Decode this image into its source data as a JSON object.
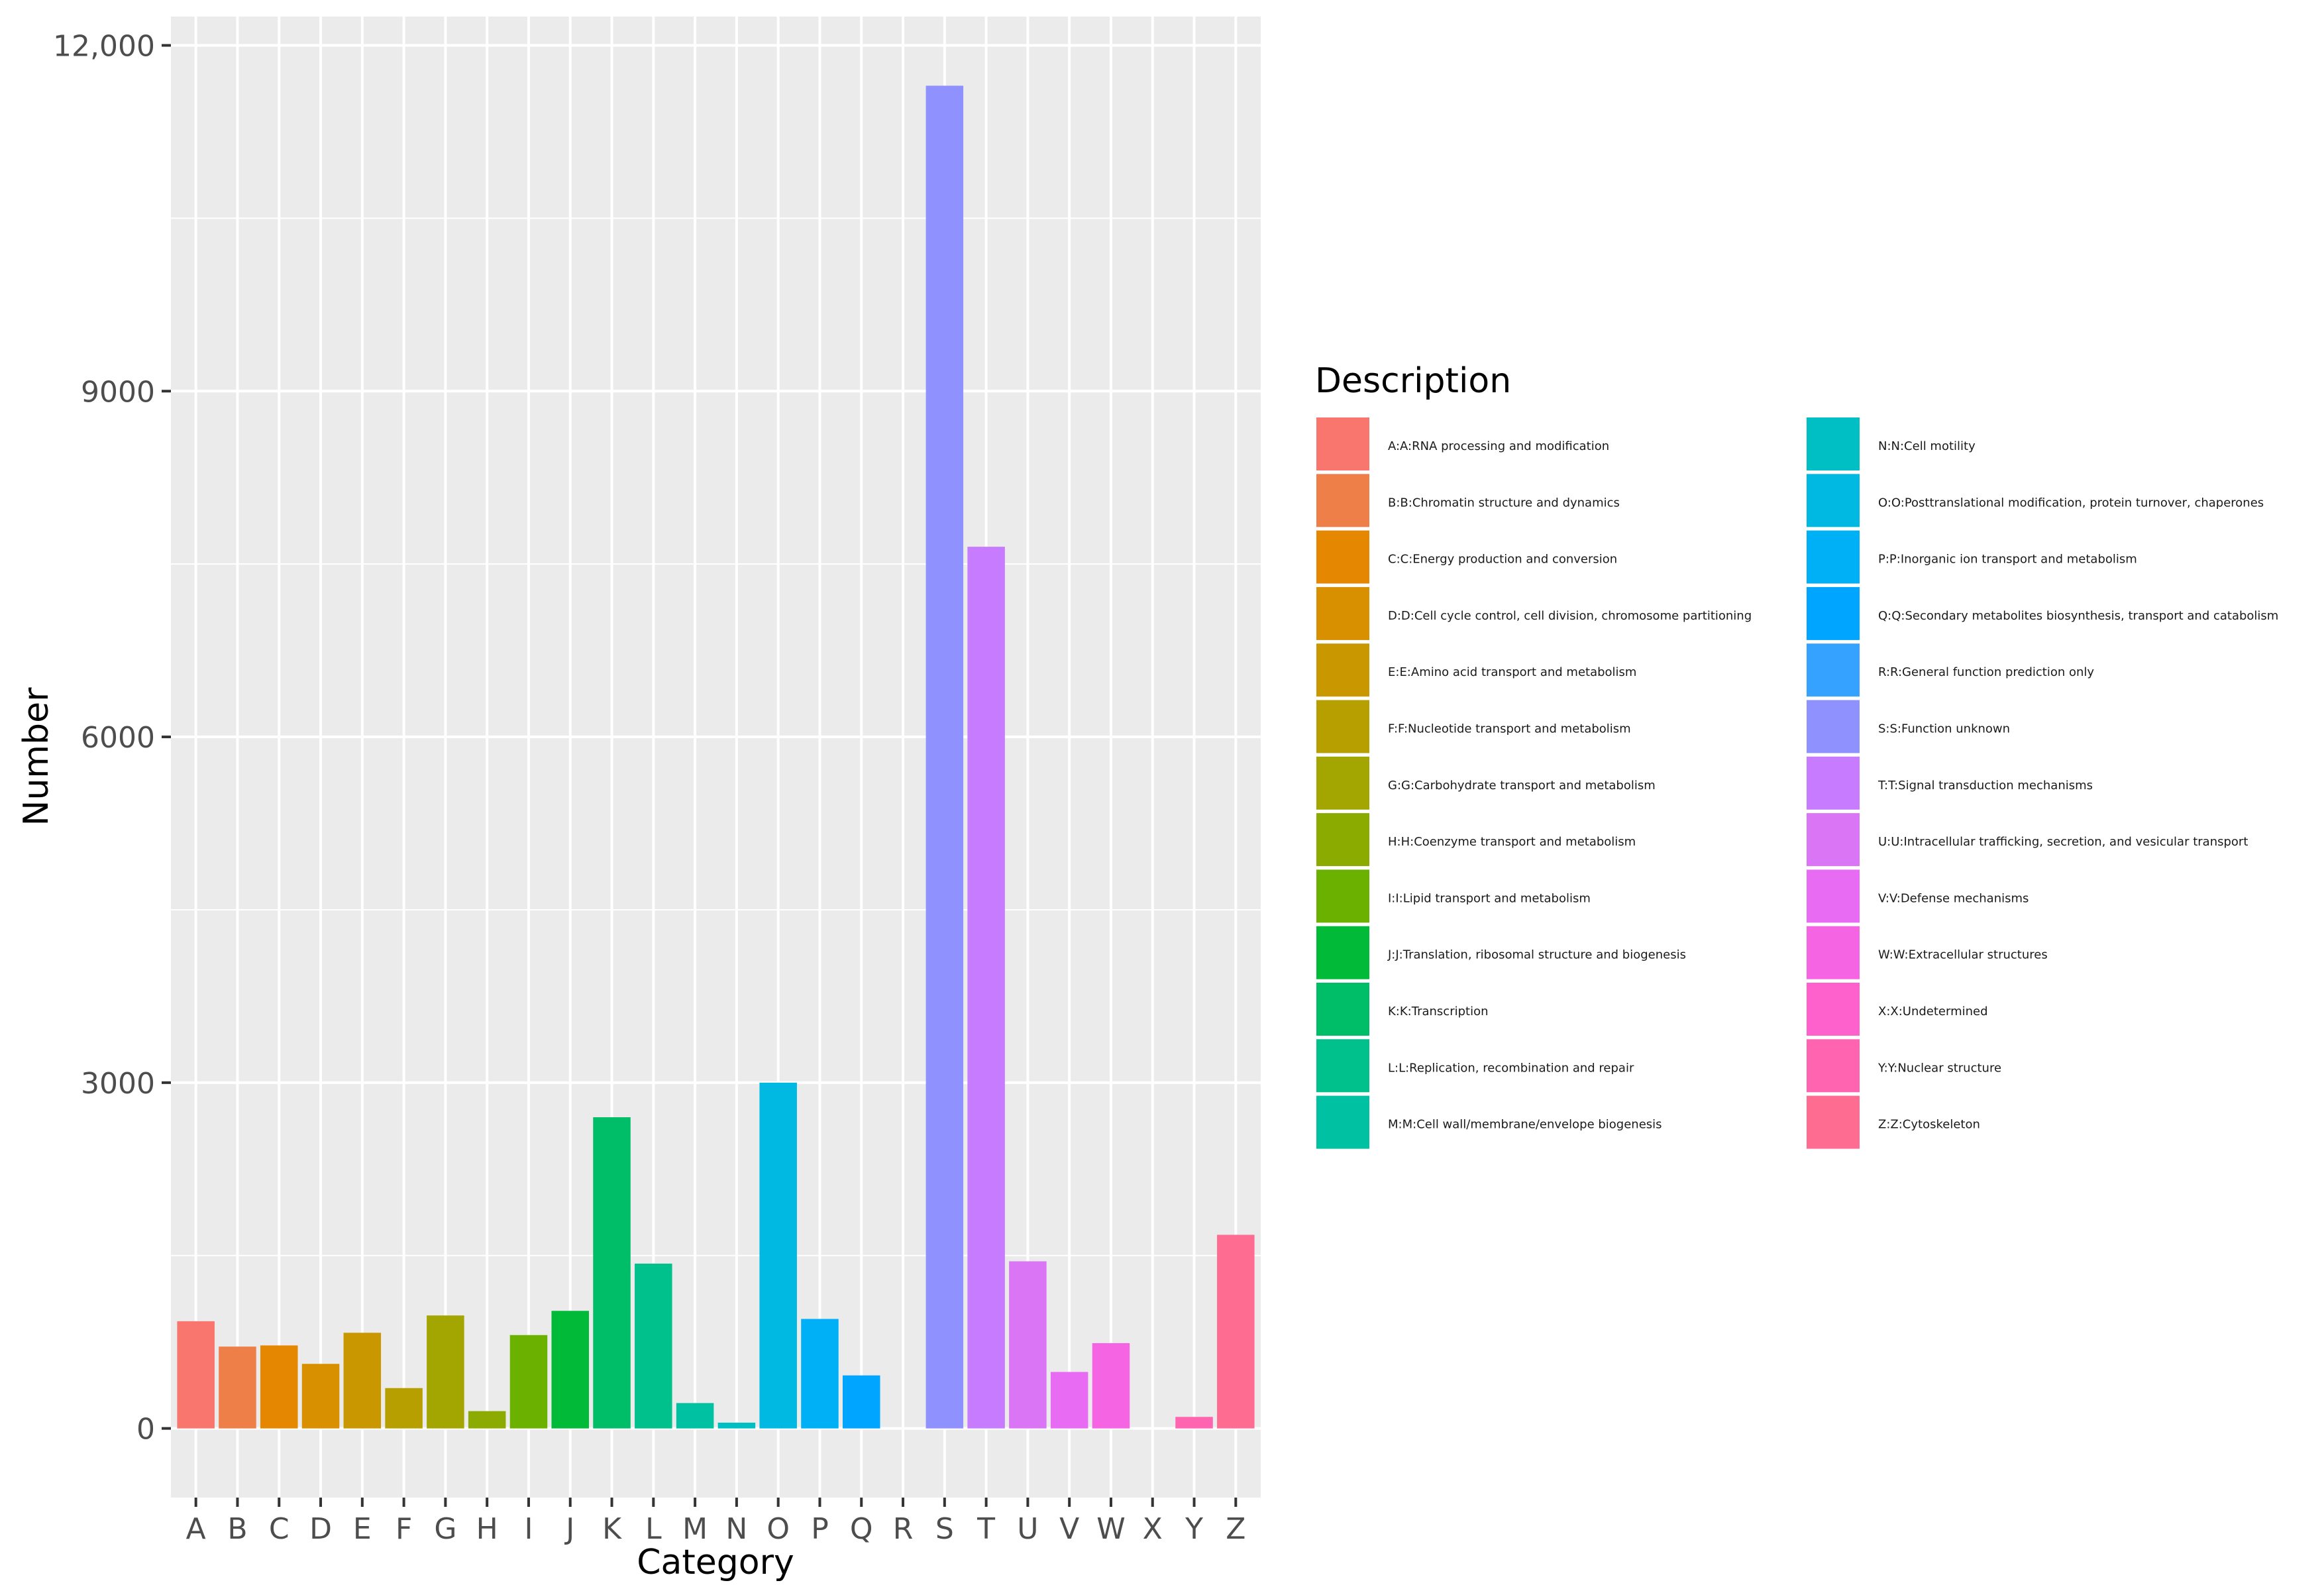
{
  "chart_data": {
    "type": "bar",
    "xlabel": "Category",
    "ylabel": "Number",
    "ylim": [
      -600,
      12250
    ],
    "yticks": [
      0,
      3000,
      6000,
      9000,
      12000
    ],
    "ytick_labels": [
      "0",
      "3000",
      "6000",
      "9000",
      "12,000"
    ],
    "grid": true,
    "legend_title": "Description",
    "legend_position": "right",
    "categories": [
      "A",
      "B",
      "C",
      "D",
      "E",
      "F",
      "G",
      "H",
      "I",
      "J",
      "K",
      "L",
      "M",
      "N",
      "O",
      "P",
      "Q",
      "R",
      "S",
      "T",
      "U",
      "V",
      "W",
      "X",
      "Y",
      "Z"
    ],
    "values": [
      930,
      710,
      720,
      560,
      830,
      350,
      980,
      150,
      810,
      1020,
      2700,
      1430,
      220,
      50,
      3000,
      950,
      460,
      0,
      11650,
      7650,
      1450,
      490,
      740,
      0,
      100,
      1680
    ],
    "colors": [
      "#F8766D",
      "#EF7F48",
      "#E58700",
      "#D89000",
      "#C99800",
      "#B79F00",
      "#A3A500",
      "#8BAB00",
      "#6BB100",
      "#00BA38",
      "#00BE67",
      "#00C08B",
      "#00C1A2",
      "#00BFC4",
      "#00B9E3",
      "#00B0F6",
      "#00A5FF",
      "#35A2FF",
      "#8F91FF",
      "#C77CFF",
      "#DA76F5",
      "#E76BF3",
      "#F564E3",
      "#FF61CC",
      "#FF64B0",
      "#FF6C91"
    ],
    "legend_entries": [
      "A:A:RNA processing and modification",
      "B:B:Chromatin structure and dynamics",
      "C:C:Energy production and conversion",
      "D:D:Cell cycle control, cell division, chromosome partitioning",
      "E:E:Amino acid transport and metabolism",
      "F:F:Nucleotide transport and metabolism",
      "G:G:Carbohydrate transport and metabolism",
      "H:H:Coenzyme transport and metabolism",
      "I:I:Lipid transport and metabolism",
      "J:J:Translation, ribosomal structure and biogenesis",
      "K:K:Transcription",
      "L:L:Replication, recombination and repair",
      "M:M:Cell wall/membrane/envelope biogenesis",
      "N:N:Cell motility",
      "O:O:Posttranslational modification, protein turnover, chaperones",
      "P:P:Inorganic ion transport and metabolism",
      "Q:Q:Secondary metabolites biosynthesis, transport and catabolism",
      "R:R:General function prediction only",
      "S:S:Function unknown",
      "T:T:Signal transduction mechanisms",
      "U:U:Intracellular trafficking, secretion, and vesicular transport",
      "V:V:Defense mechanisms",
      "W:W:Extracellular structures",
      "X:X:Undetermined",
      "Y:Y:Nuclear structure",
      "Z:Z:Cytoskeleton"
    ]
  }
}
